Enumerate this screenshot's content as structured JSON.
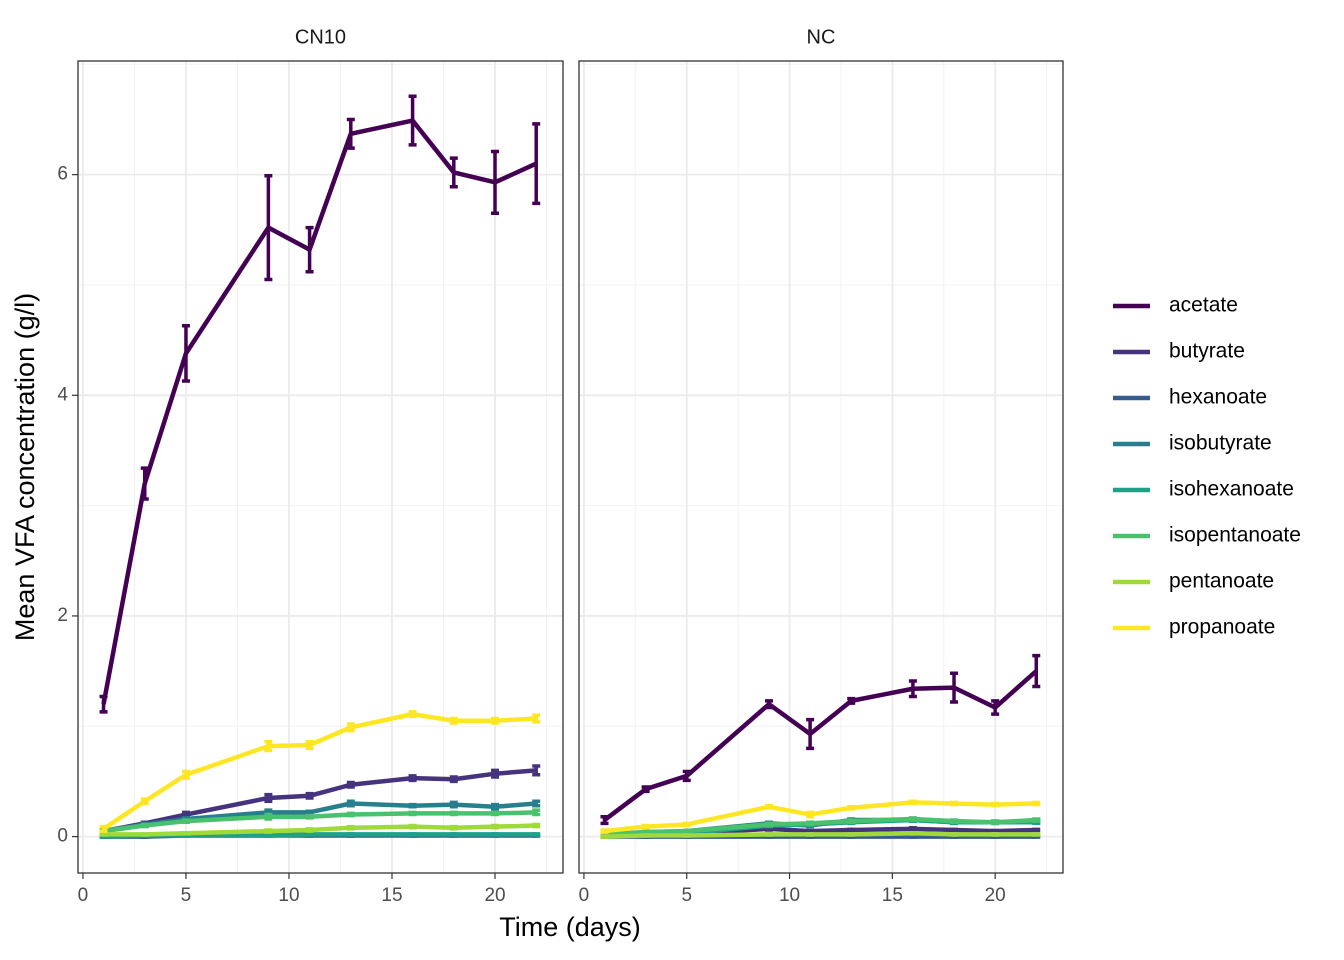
{
  "chart_data": {
    "type": "line",
    "xlabel": "Time (days)",
    "ylabel": "Mean VFA concentration (g/l)",
    "x": [
      1,
      3,
      5,
      9,
      11,
      13,
      16,
      18,
      20,
      22
    ],
    "xlim": [
      -0.24,
      23.3
    ],
    "ylim": [
      -0.33,
      7.03
    ],
    "xticks": [
      0,
      5,
      10,
      15,
      20
    ],
    "yticks": [
      0,
      2,
      4,
      6
    ],
    "xminor": [
      2.5,
      7.5,
      12.5,
      17.5,
      22.5
    ],
    "yminor": [
      1,
      3,
      5,
      7
    ],
    "grid": true,
    "legend": "right",
    "series": [
      {
        "name": "acetate",
        "color": "#440154"
      },
      {
        "name": "butyrate",
        "color": "#46337E"
      },
      {
        "name": "hexanoate",
        "color": "#365C8D"
      },
      {
        "name": "isobutyrate",
        "color": "#277F8E"
      },
      {
        "name": "isohexanoate",
        "color": "#1FA187"
      },
      {
        "name": "isopentanoate",
        "color": "#4AC16D"
      },
      {
        "name": "pentanoate",
        "color": "#9FDA3A"
      },
      {
        "name": "propanoate",
        "color": "#FDE725"
      }
    ],
    "panels": [
      {
        "title": "CN10",
        "series": [
          {
            "values": [
              1.2,
              3.2,
              4.38,
              5.52,
              5.32,
              6.37,
              6.49,
              6.02,
              5.93,
              6.1
            ],
            "errors": [
              0.07,
              0.14,
              0.25,
              0.47,
              0.2,
              0.13,
              0.22,
              0.13,
              0.28,
              0.36
            ]
          },
          {
            "values": [
              0.05,
              0.12,
              0.2,
              0.35,
              0.37,
              0.47,
              0.53,
              0.52,
              0.57,
              0.6
            ],
            "errors": [
              0.01,
              0.01,
              0.02,
              0.03,
              0.02,
              0.02,
              0.02,
              0.02,
              0.03,
              0.04
            ]
          },
          {
            "values": [
              0,
              0,
              0.01,
              0.01,
              0.01,
              0.01,
              0.01,
              0.01,
              0.01,
              0.01
            ],
            "errors": [
              0.005,
              0.005,
              0.005,
              0.005,
              0.005,
              0.005,
              0.005,
              0.005,
              0.005,
              0.005
            ]
          },
          {
            "values": [
              0.05,
              0.11,
              0.16,
              0.22,
              0.22,
              0.3,
              0.28,
              0.29,
              0.27,
              0.3
            ],
            "errors": [
              0.01,
              0.01,
              0.01,
              0.02,
              0.01,
              0.02,
              0.01,
              0.02,
              0.02,
              0.02
            ]
          },
          {
            "values": [
              0,
              0.01,
              0.01,
              0.01,
              0.02,
              0.02,
              0.02,
              0.02,
              0.02,
              0.02
            ],
            "errors": [
              0.005,
              0.005,
              0.005,
              0.005,
              0.005,
              0.005,
              0.005,
              0.005,
              0.005,
              0.005
            ]
          },
          {
            "values": [
              0.05,
              0.1,
              0.14,
              0.18,
              0.18,
              0.2,
              0.21,
              0.21,
              0.21,
              0.22
            ],
            "errors": [
              0.01,
              0.01,
              0.01,
              0.02,
              0.01,
              0.01,
              0.01,
              0.01,
              0.01,
              0.02
            ]
          },
          {
            "values": [
              0.02,
              0.02,
              0.03,
              0.05,
              0.06,
              0.08,
              0.09,
              0.08,
              0.09,
              0.1
            ],
            "errors": [
              0.005,
              0.005,
              0.005,
              0.01,
              0.01,
              0.01,
              0.01,
              0.01,
              0.01,
              0.01
            ]
          },
          {
            "values": [
              0.07,
              0.32,
              0.56,
              0.82,
              0.83,
              0.99,
              1.11,
              1.05,
              1.05,
              1.07
            ],
            "errors": [
              0.02,
              0.02,
              0.03,
              0.04,
              0.03,
              0.03,
              0.02,
              0.02,
              0.02,
              0.03
            ]
          }
        ]
      },
      {
        "title": "NC",
        "series": [
          {
            "values": [
              0.15,
              0.43,
              0.55,
              1.2,
              0.93,
              1.23,
              1.34,
              1.35,
              1.17,
              1.5
            ],
            "errors": [
              0.03,
              0.02,
              0.04,
              0.03,
              0.13,
              0.02,
              0.07,
              0.13,
              0.06,
              0.14
            ]
          },
          {
            "values": [
              0.01,
              0.02,
              0.03,
              0.07,
              0.05,
              0.06,
              0.07,
              0.06,
              0.05,
              0.06
            ],
            "errors": [
              0.005,
              0.005,
              0.005,
              0.01,
              0.005,
              0.005,
              0.01,
              0.005,
              0.005,
              0.005
            ]
          },
          {
            "values": [
              0,
              0,
              0,
              0,
              0,
              0,
              0,
              0,
              0,
              0
            ],
            "errors": [
              0.005,
              0.005,
              0.005,
              0.005,
              0.005,
              0.005,
              0.005,
              0.005,
              0.005,
              0.005
            ]
          },
          {
            "values": [
              0.02,
              0.04,
              0.05,
              0.12,
              0.1,
              0.15,
              0.15,
              0.13,
              0.13,
              0.14
            ],
            "errors": [
              0.005,
              0.005,
              0.005,
              0.01,
              0.01,
              0.01,
              0.01,
              0.01,
              0.01,
              0.01
            ]
          },
          {
            "values": [
              0.01,
              0.02,
              0.03,
              0.1,
              0.11,
              0.13,
              0.15,
              0.13,
              0.13,
              0.13
            ],
            "errors": [
              0.005,
              0.005,
              0.005,
              0.01,
              0.01,
              0.01,
              0.01,
              0.01,
              0.01,
              0.01
            ]
          },
          {
            "values": [
              0.02,
              0.04,
              0.05,
              0.11,
              0.12,
              0.14,
              0.16,
              0.14,
              0.13,
              0.15
            ],
            "errors": [
              0.005,
              0.005,
              0.005,
              0.01,
              0.01,
              0.01,
              0.01,
              0.01,
              0.01,
              0.01
            ]
          },
          {
            "values": [
              0,
              0.01,
              0.01,
              0.02,
              0.02,
              0.02,
              0.03,
              0.02,
              0.02,
              0.02
            ],
            "errors": [
              0.005,
              0.005,
              0.005,
              0.005,
              0.005,
              0.005,
              0.005,
              0.005,
              0.005,
              0.005
            ]
          },
          {
            "values": [
              0.05,
              0.09,
              0.11,
              0.27,
              0.2,
              0.26,
              0.31,
              0.3,
              0.29,
              0.3
            ],
            "errors": [
              0.01,
              0.01,
              0.01,
              0.01,
              0.02,
              0.01,
              0.01,
              0.01,
              0.01,
              0.01
            ]
          }
        ]
      }
    ]
  }
}
